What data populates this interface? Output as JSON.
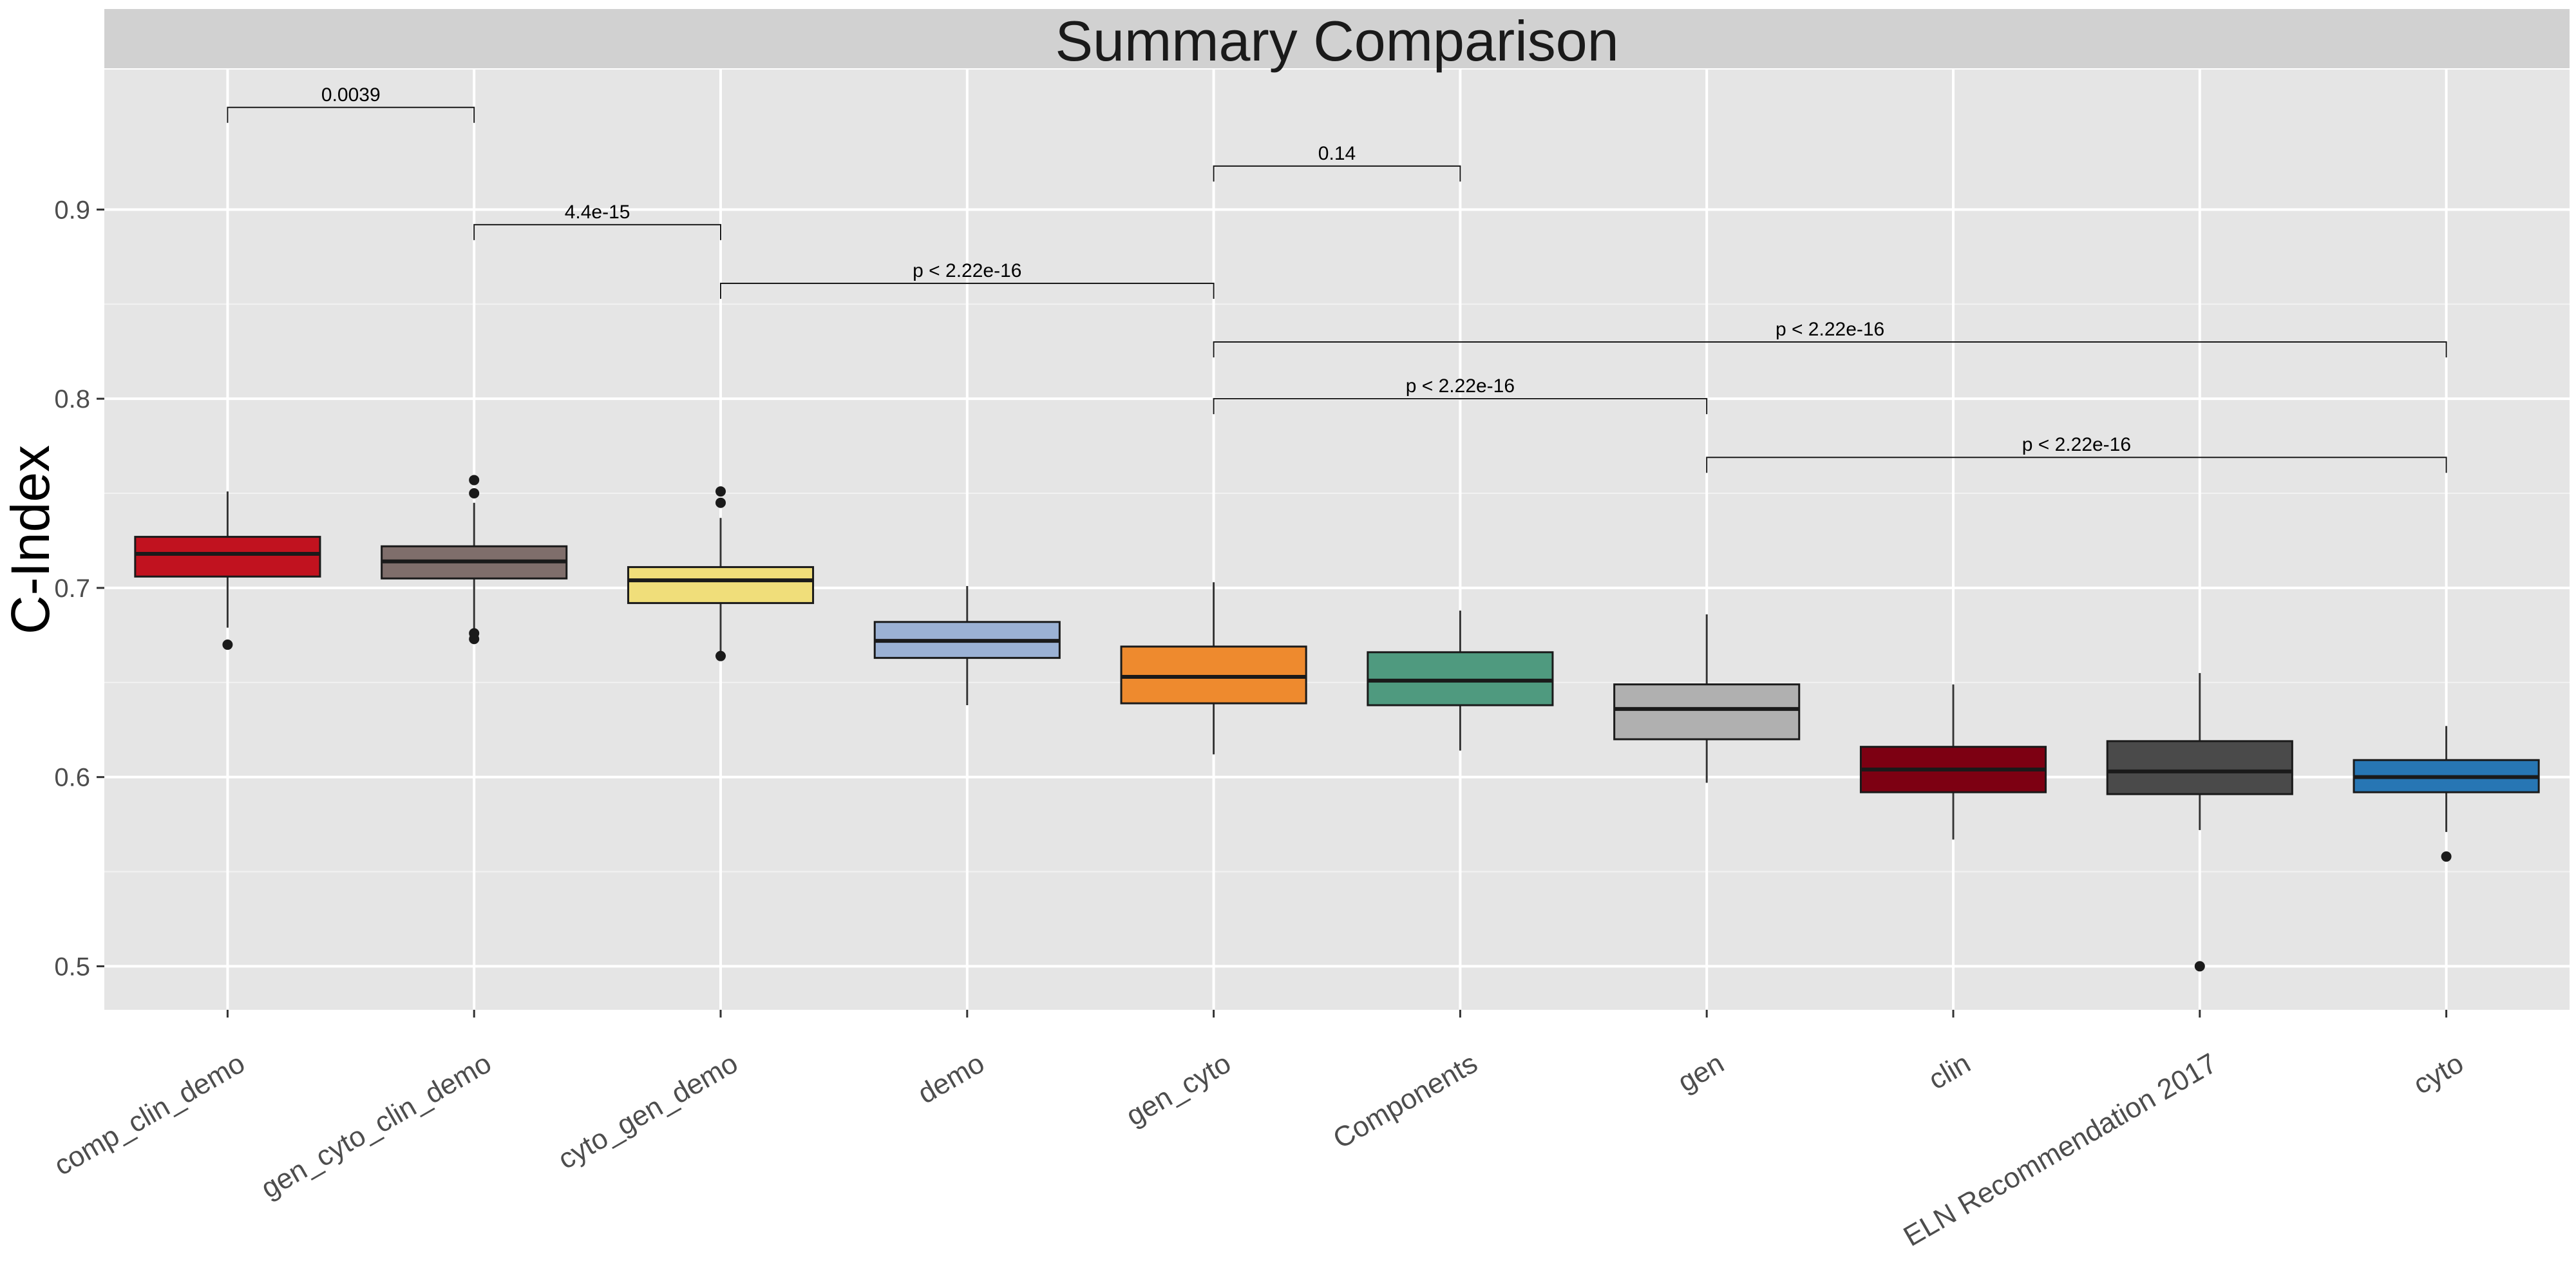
{
  "chart_data": {
    "type": "boxplot",
    "title": "Summary Comparison",
    "xlabel": "",
    "ylabel": "C-Index",
    "ylim": [
      0.477,
      0.974
    ],
    "yticks": [
      0.5,
      0.6,
      0.7,
      0.8,
      0.9
    ],
    "ytick_labels": [
      "0.5",
      "0.6",
      "0.7",
      "0.8",
      "0.9"
    ],
    "grid": true,
    "legend": "none",
    "categories": [
      "comp_clin_demo",
      "gen_cyto_clin_demo",
      "cyto_gen_demo",
      "demo",
      "gen_cyto",
      "Components",
      "gen",
      "clin",
      "ELN Recommendation 2017",
      "cyto"
    ],
    "boxes": [
      {
        "category": "comp_clin_demo",
        "color": "#C1121F",
        "whisker_low": 0.679,
        "q1": 0.706,
        "median": 0.718,
        "q3": 0.727,
        "whisker_high": 0.751,
        "outliers": [
          0.67
        ]
      },
      {
        "category": "gen_cyto_clin_demo",
        "color": "#7F6E6B",
        "whisker_low": 0.677,
        "q1": 0.705,
        "median": 0.714,
        "q3": 0.722,
        "whisker_high": 0.745,
        "outliers": [
          0.757,
          0.75,
          0.676,
          0.673
        ]
      },
      {
        "category": "cyto_gen_demo",
        "color": "#F0DE7A",
        "whisker_low": 0.665,
        "q1": 0.692,
        "median": 0.704,
        "q3": 0.711,
        "whisker_high": 0.737,
        "outliers": [
          0.751,
          0.745,
          0.664
        ]
      },
      {
        "category": "demo",
        "color": "#9BB1D4",
        "whisker_low": 0.638,
        "q1": 0.663,
        "median": 0.672,
        "q3": 0.682,
        "whisker_high": 0.701,
        "outliers": []
      },
      {
        "category": "gen_cyto",
        "color": "#EE8A2E",
        "whisker_low": 0.612,
        "q1": 0.639,
        "median": 0.653,
        "q3": 0.669,
        "whisker_high": 0.703,
        "outliers": []
      },
      {
        "category": "Components",
        "color": "#4F9A7F",
        "whisker_low": 0.614,
        "q1": 0.638,
        "median": 0.651,
        "q3": 0.666,
        "whisker_high": 0.688,
        "outliers": []
      },
      {
        "category": "gen",
        "color": "#B0B0B0",
        "whisker_low": 0.597,
        "q1": 0.62,
        "median": 0.636,
        "q3": 0.649,
        "whisker_high": 0.686,
        "outliers": []
      },
      {
        "category": "clin",
        "color": "#7D0012",
        "whisker_low": 0.567,
        "q1": 0.592,
        "median": 0.604,
        "q3": 0.616,
        "whisker_high": 0.649,
        "outliers": []
      },
      {
        "category": "ELN Recommendation 2017",
        "color": "#4A4A4A",
        "whisker_low": 0.572,
        "q1": 0.591,
        "median": 0.603,
        "q3": 0.619,
        "whisker_high": 0.655,
        "outliers": [
          0.5
        ]
      },
      {
        "category": "cyto",
        "color": "#2776B4",
        "whisker_low": 0.571,
        "q1": 0.592,
        "median": 0.6,
        "q3": 0.609,
        "whisker_high": 0.627,
        "outliers": [
          0.558
        ]
      }
    ],
    "comparisons": [
      {
        "from": "comp_clin_demo",
        "to": "gen_cyto_clin_demo",
        "y": 0.954,
        "label": "0.0039"
      },
      {
        "from": "gen_cyto",
        "to": "Components",
        "y": 0.923,
        "label": "0.14"
      },
      {
        "from": "gen_cyto_clin_demo",
        "to": "cyto_gen_demo",
        "y": 0.892,
        "label": "4.4e-15"
      },
      {
        "from": "cyto_gen_demo",
        "to": "gen_cyto",
        "y": 0.861,
        "label": "p < 2.22e-16"
      },
      {
        "from": "gen_cyto",
        "to": "cyto",
        "y": 0.83,
        "label": "p < 2.22e-16"
      },
      {
        "from": "gen_cyto",
        "to": "gen",
        "y": 0.8,
        "label": "p < 2.22e-16"
      },
      {
        "from": "gen",
        "to": "cyto",
        "y": 0.769,
        "label": "p < 2.22e-16"
      }
    ]
  }
}
